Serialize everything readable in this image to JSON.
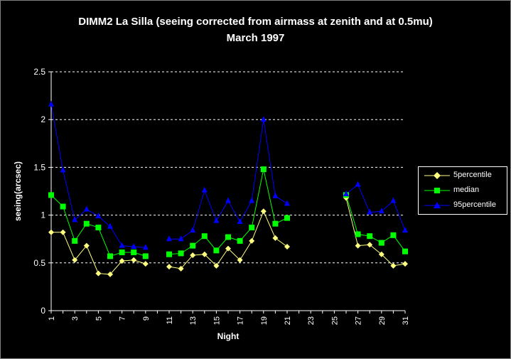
{
  "chart_data": {
    "type": "line",
    "title": "DIMM2 La Silla (seeing corrected from airmass at zenith and at 0.5mu)",
    "subtitle": "March 1997",
    "xlabel": "Night",
    "ylabel": "seeing(arcsec)",
    "xlim": [
      1,
      31
    ],
    "ylim": [
      0,
      2.5
    ],
    "x_ticks": [
      "1",
      "3",
      "5",
      "7",
      "9",
      "11",
      "13",
      "15",
      "17",
      "19",
      "21",
      "23",
      "25",
      "27",
      "29",
      "31"
    ],
    "y_ticks": [
      "0",
      "0.5",
      "1",
      "1.5",
      "2",
      "2.5"
    ],
    "grid": "horizontal dashed",
    "legend_position": "right",
    "x": [
      1,
      2,
      3,
      4,
      5,
      6,
      7,
      8,
      9,
      10,
      11,
      12,
      13,
      14,
      15,
      16,
      17,
      18,
      19,
      20,
      21,
      22,
      23,
      24,
      25,
      26,
      27,
      28,
      29,
      30,
      31
    ],
    "series": [
      {
        "name": "5percentile",
        "color": "#ffff80",
        "marker": "diamond",
        "values": [
          0.82,
          0.82,
          0.53,
          0.68,
          0.39,
          0.38,
          0.52,
          0.53,
          0.49,
          null,
          0.46,
          0.44,
          0.58,
          0.59,
          0.47,
          0.65,
          0.53,
          0.73,
          1.04,
          0.76,
          0.67,
          null,
          null,
          null,
          null,
          1.18,
          0.68,
          0.69,
          0.59,
          0.47,
          0.49
        ]
      },
      {
        "name": "median",
        "color": "#00ff00",
        "marker": "square",
        "values": [
          1.21,
          1.09,
          0.73,
          0.91,
          0.87,
          0.57,
          0.61,
          0.61,
          0.57,
          null,
          0.59,
          0.6,
          0.68,
          0.78,
          0.63,
          0.77,
          0.73,
          0.87,
          1.48,
          0.91,
          0.97,
          null,
          null,
          null,
          null,
          1.21,
          0.8,
          0.78,
          0.71,
          0.79,
          0.62
        ]
      },
      {
        "name": "95percentile",
        "color": "#0000ff",
        "marker": "triangle",
        "values": [
          2.16,
          1.47,
          0.95,
          1.06,
          0.99,
          0.88,
          0.68,
          0.67,
          0.66,
          null,
          0.75,
          0.75,
          0.84,
          1.26,
          0.94,
          1.15,
          0.93,
          1.15,
          2.0,
          1.2,
          1.12,
          null,
          null,
          null,
          null,
          1.22,
          1.32,
          1.03,
          1.04,
          1.15,
          0.84
        ]
      }
    ]
  }
}
